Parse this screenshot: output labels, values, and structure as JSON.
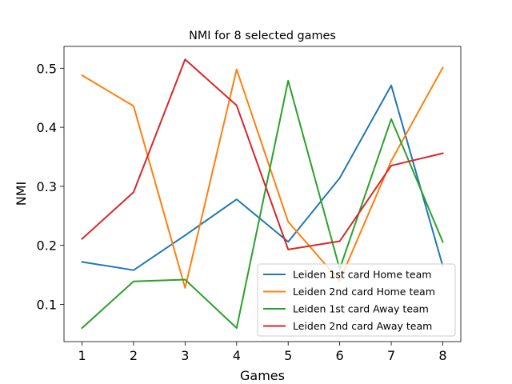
{
  "chart_data": {
    "type": "line",
    "title": "NMI for 8 selected games",
    "xlabel": "Games",
    "ylabel": "NMI",
    "x": [
      1,
      2,
      3,
      4,
      5,
      6,
      7,
      8
    ],
    "xticks": [
      "1",
      "2",
      "3",
      "4",
      "5",
      "6",
      "7",
      "8"
    ],
    "yticks": [
      "0.1",
      "0.2",
      "0.3",
      "0.4",
      "0.5"
    ],
    "ytick_values": [
      0.1,
      0.2,
      0.3,
      0.4,
      0.5
    ],
    "xlim": [
      0.65,
      8.35
    ],
    "ylim": [
      0.037,
      0.537
    ],
    "grid": false,
    "legend_position": "lower-right",
    "series": [
      {
        "name": "Leiden 1st card Home team",
        "color": "#1f77b4",
        "values": [
          0.172,
          0.158,
          0.217,
          0.278,
          0.206,
          0.314,
          0.471,
          0.165
        ]
      },
      {
        "name": "Leiden 2nd card Home team",
        "color": "#ff7f0e",
        "values": [
          0.488,
          0.436,
          0.128,
          0.498,
          0.24,
          0.14,
          0.343,
          0.501
        ]
      },
      {
        "name": "Leiden 1st card Away team",
        "color": "#2ca02c",
        "values": [
          0.06,
          0.139,
          0.142,
          0.06,
          0.479,
          0.16,
          0.414,
          0.206
        ]
      },
      {
        "name": "Leiden 2nd card Away team",
        "color": "#d62728",
        "values": [
          0.211,
          0.29,
          0.515,
          0.437,
          0.193,
          0.207,
          0.335,
          0.356
        ]
      }
    ]
  }
}
